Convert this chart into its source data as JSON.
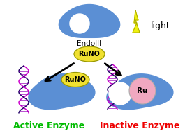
{
  "bg_color": "#ffffff",
  "enzyme_color": "#5b8fd4",
  "runo_ellipse_color": "#f0e030",
  "runo_ellipse_edge": "#999900",
  "ru_circle_color": "#f0a8c0",
  "ru_circle_edge": "#aaaaaa",
  "dna_color1": "#cc00cc",
  "dna_color2": "#220066",
  "arrow_color": "#111111",
  "light_color": "#eef010",
  "light_edge": "#aaaa00",
  "text_EndoIII": "EndoIII",
  "text_RuNO": "RuNO",
  "text_Ru": "Ru",
  "text_light": "light",
  "text_active": "Active Enzyme",
  "text_inactive": "Inactive Enzyme",
  "active_color": "#00bb00",
  "inactive_color": "#ee0000",
  "figsize": [
    2.75,
    1.89
  ],
  "dpi": 100
}
